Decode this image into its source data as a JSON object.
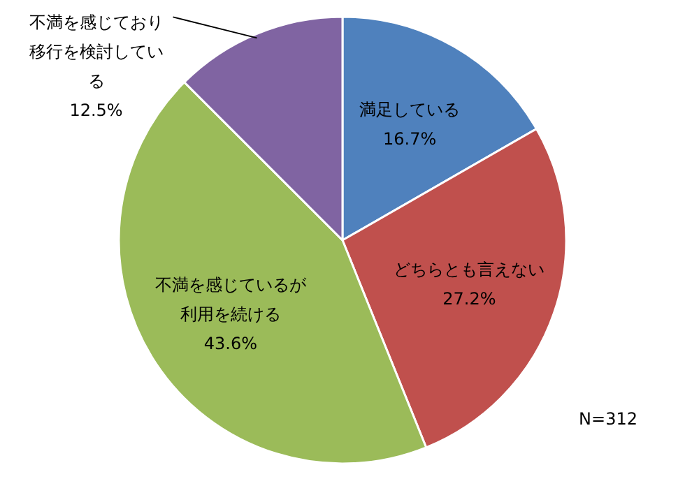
{
  "chart_data": {
    "type": "pie",
    "categories": [
      "満足している",
      "どちらとも言えない",
      "不満を感じているが利用を続ける",
      "不満を感じており移行を検討している"
    ],
    "values": [
      16.7,
      27.2,
      43.6,
      12.5
    ],
    "value_labels": [
      "16.7%",
      "27.2%",
      "43.6%",
      "12.5%"
    ],
    "colors": [
      "#4f81bd",
      "#c0504d",
      "#9bbb59",
      "#8064a2"
    ],
    "annotations": [
      "N=312"
    ]
  }
}
